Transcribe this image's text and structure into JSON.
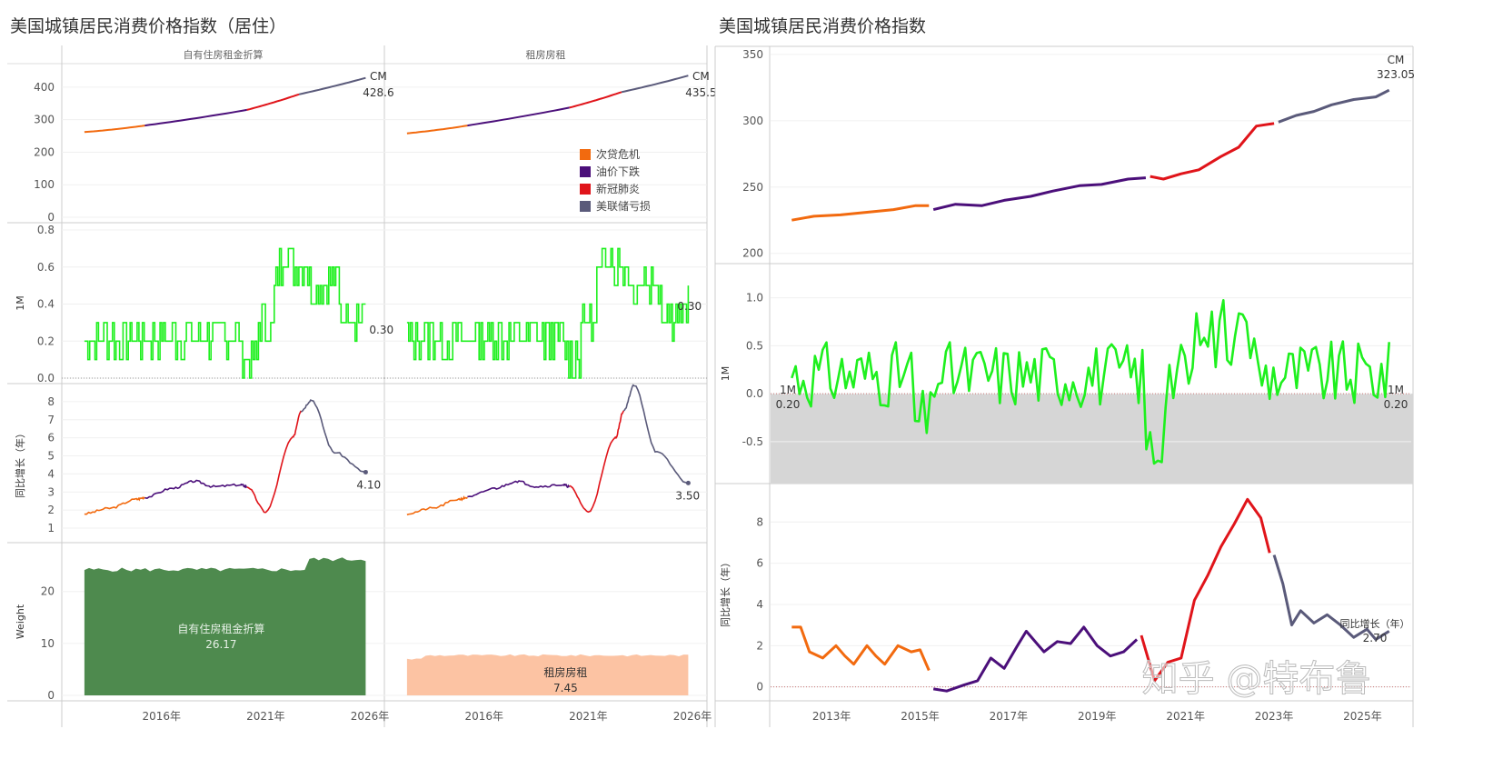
{
  "titles": {
    "left": "美国城镇居民消费价格指数（居住）",
    "right": "美国城镇居民消费价格指数"
  },
  "watermark": "知乎 @特布鲁",
  "colors": {
    "subprime": "#f26a0f",
    "oil": "#4b0f7a",
    "covid": "#e0141a",
    "fed": "#5a5a7a",
    "green": "#1ef01e",
    "weight_owner": "#4e8a4e",
    "weight_rent": "#fcc3a3",
    "grey_band": "#d6d6d6"
  },
  "legend": [
    {
      "label": "次贷危机",
      "color": "#f26a0f"
    },
    {
      "label": "油价下跌",
      "color": "#4b0f7a"
    },
    {
      "label": "新冠肺炎",
      "color": "#e0141a"
    },
    {
      "label": "美联储亏损",
      "color": "#5a5a7a"
    }
  ],
  "chart_data": [
    {
      "type": "line",
      "panel": "left-housing",
      "columns": [
        "自有住房租金折算",
        "租房房租"
      ],
      "x_ticks": [
        "2016年",
        "2021年",
        "2026年"
      ],
      "rows": [
        {
          "name": "index",
          "ylabel": "",
          "yticks": [
            "400",
            "300",
            "200",
            "100",
            "0"
          ],
          "ylim": [
            0,
            450
          ],
          "series": {
            "owner": {
              "segments": [
                {
                  "era": "subprime",
                  "x": [
                    2012.3,
                    2015.2
                  ],
                  "y": [
                    262,
                    282
                  ]
                },
                {
                  "era": "oil",
                  "x": [
                    2015.2,
                    2020.1
                  ],
                  "y": [
                    282,
                    330
                  ]
                },
                {
                  "era": "covid",
                  "x": [
                    2020.1,
                    2022.6
                  ],
                  "y": [
                    330,
                    378
                  ]
                },
                {
                  "era": "fed",
                  "x": [
                    2022.6,
                    2025.8
                  ],
                  "y": [
                    378,
                    428.6
                  ]
                }
              ],
              "end_label_1": "CM",
              "end_label_2": "428.6"
            },
            "rent": {
              "segments": [
                {
                  "era": "subprime",
                  "x": [
                    2012.3,
                    2015.2
                  ],
                  "y": [
                    258,
                    282
                  ]
                },
                {
                  "era": "oil",
                  "x": [
                    2015.2,
                    2020.1
                  ],
                  "y": [
                    282,
                    337
                  ]
                },
                {
                  "era": "covid",
                  "x": [
                    2020.1,
                    2022.6
                  ],
                  "y": [
                    337,
                    385
                  ]
                },
                {
                  "era": "fed",
                  "x": [
                    2022.6,
                    2025.8
                  ],
                  "y": [
                    385,
                    435.5
                  ]
                }
              ],
              "end_label_1": "CM",
              "end_label_2": "435.5"
            }
          }
        },
        {
          "name": "1M",
          "ylabel": "1M",
          "yticks": [
            "0.8",
            "0.6",
            "0.4",
            "0.2",
            "0.0"
          ],
          "ylim": [
            0,
            0.8
          ],
          "owner_end": "0.30",
          "rent_end": "0.30"
        },
        {
          "name": "yoy",
          "ylabel": "同比增长（年）",
          "yticks": [
            "8",
            "7",
            "6",
            "5",
            "4",
            "3",
            "2",
            "1"
          ],
          "ylim": [
            0.5,
            8.6
          ],
          "owner_end": "4.10",
          "rent_end": "3.50"
        },
        {
          "name": "weight",
          "ylabel": "Weight",
          "yticks": [
            "20",
            "10",
            "0"
          ],
          "ylim": [
            0,
            28
          ],
          "owner": {
            "label": "自有住房租金折算",
            "value": "26.17"
          },
          "rent": {
            "label": "租房房租",
            "value": "7.45"
          }
        }
      ]
    },
    {
      "type": "line",
      "panel": "right-cpi",
      "x_ticks": [
        "2013年",
        "2015年",
        "2017年",
        "2019年",
        "2021年",
        "2023年",
        "2025年"
      ],
      "rows": [
        {
          "name": "index",
          "ylabel": "",
          "yticks": [
            "350",
            "300",
            "250",
            "200"
          ],
          "ylim": [
            195,
            352
          ],
          "end_label_1": "CM",
          "end_label_2": "323.05",
          "segments": [
            {
              "era": "subprime",
              "points": [
                [
                  2012.1,
                  225
                ],
                [
                  2012.6,
                  228
                ],
                [
                  2013.2,
                  229
                ],
                [
                  2013.8,
                  231
                ],
                [
                  2014.4,
                  233
                ],
                [
                  2014.9,
                  236
                ],
                [
                  2015.2,
                  236
                ]
              ]
            },
            {
              "era": "oil",
              "points": [
                [
                  2015.3,
                  233
                ],
                [
                  2015.8,
                  237
                ],
                [
                  2016.4,
                  236
                ],
                [
                  2016.9,
                  240
                ],
                [
                  2017.5,
                  243
                ],
                [
                  2018.0,
                  247
                ],
                [
                  2018.6,
                  251
                ],
                [
                  2019.1,
                  252
                ],
                [
                  2019.7,
                  256
                ],
                [
                  2020.1,
                  257
                ]
              ]
            },
            {
              "era": "covid",
              "points": [
                [
                  2020.2,
                  258
                ],
                [
                  2020.5,
                  256
                ],
                [
                  2020.9,
                  260
                ],
                [
                  2021.3,
                  263
                ],
                [
                  2021.8,
                  273
                ],
                [
                  2022.2,
                  280
                ],
                [
                  2022.6,
                  296
                ],
                [
                  2023.0,
                  298
                ]
              ]
            },
            {
              "era": "fed",
              "points": [
                [
                  2023.1,
                  299
                ],
                [
                  2023.5,
                  304
                ],
                [
                  2023.9,
                  307
                ],
                [
                  2024.3,
                  312
                ],
                [
                  2024.8,
                  316
                ],
                [
                  2025.3,
                  318
                ],
                [
                  2025.6,
                  323.05
                ]
              ]
            }
          ]
        },
        {
          "name": "1M",
          "ylabel": "1M",
          "yticks": [
            "1.0",
            "0.5",
            "0.0",
            "-0.5"
          ],
          "ylim": [
            -0.9,
            1.3
          ],
          "start_label_1": "1M",
          "start_label_2": "0.20",
          "end_label_1": "1M",
          "end_label_2": "0.20"
        },
        {
          "name": "yoy",
          "ylabel": "同比增长（年）",
          "yticks": [
            "8",
            "6",
            "4",
            "2",
            "0"
          ],
          "ylim": [
            -0.5,
            9.6
          ],
          "end_label_1": "同比增长（年）",
          "end_label_2": "2.70",
          "segments": [
            {
              "era": "subprime",
              "points": [
                [
                  2012.1,
                  2.9
                ],
                [
                  2012.3,
                  2.9
                ],
                [
                  2012.5,
                  1.7
                ],
                [
                  2012.8,
                  1.4
                ],
                [
                  2013.1,
                  2.0
                ],
                [
                  2013.3,
                  1.5
                ],
                [
                  2013.5,
                  1.1
                ],
                [
                  2013.8,
                  2.0
                ],
                [
                  2014.0,
                  1.5
                ],
                [
                  2014.2,
                  1.1
                ],
                [
                  2014.5,
                  2.0
                ],
                [
                  2014.8,
                  1.7
                ],
                [
                  2015.0,
                  1.8
                ],
                [
                  2015.2,
                  0.8
                ]
              ]
            },
            {
              "era": "oil",
              "points": [
                [
                  2015.3,
                  -0.1
                ],
                [
                  2015.6,
                  -0.2
                ],
                [
                  2016.0,
                  0.1
                ],
                [
                  2016.3,
                  0.3
                ],
                [
                  2016.6,
                  1.4
                ],
                [
                  2016.9,
                  0.9
                ],
                [
                  2017.2,
                  2.0
                ],
                [
                  2017.4,
                  2.7
                ],
                [
                  2017.8,
                  1.7
                ],
                [
                  2018.1,
                  2.2
                ],
                [
                  2018.4,
                  2.1
                ],
                [
                  2018.7,
                  2.9
                ],
                [
                  2019.0,
                  2.0
                ],
                [
                  2019.3,
                  1.5
                ],
                [
                  2019.6,
                  1.7
                ],
                [
                  2019.9,
                  2.3
                ]
              ]
            },
            {
              "era": "covid",
              "points": [
                [
                  2020.0,
                  2.5
                ],
                [
                  2020.3,
                  0.3
                ],
                [
                  2020.6,
                  1.2
                ],
                [
                  2020.9,
                  1.4
                ],
                [
                  2021.2,
                  4.2
                ],
                [
                  2021.5,
                  5.4
                ],
                [
                  2021.8,
                  6.8
                ],
                [
                  2022.1,
                  7.9
                ],
                [
                  2022.4,
                  9.1
                ],
                [
                  2022.7,
                  8.2
                ],
                [
                  2022.9,
                  6.5
                ]
              ]
            },
            {
              "era": "fed",
              "points": [
                [
                  2023.0,
                  6.4
                ],
                [
                  2023.2,
                  5.0
                ],
                [
                  2023.4,
                  3.0
                ],
                [
                  2023.6,
                  3.7
                ],
                [
                  2023.9,
                  3.1
                ],
                [
                  2024.2,
                  3.5
                ],
                [
                  2024.5,
                  3.0
                ],
                [
                  2024.8,
                  2.4
                ],
                [
                  2025.1,
                  2.8
                ],
                [
                  2025.3,
                  2.3
                ],
                [
                  2025.6,
                  2.7
                ]
              ]
            }
          ]
        }
      ]
    }
  ]
}
